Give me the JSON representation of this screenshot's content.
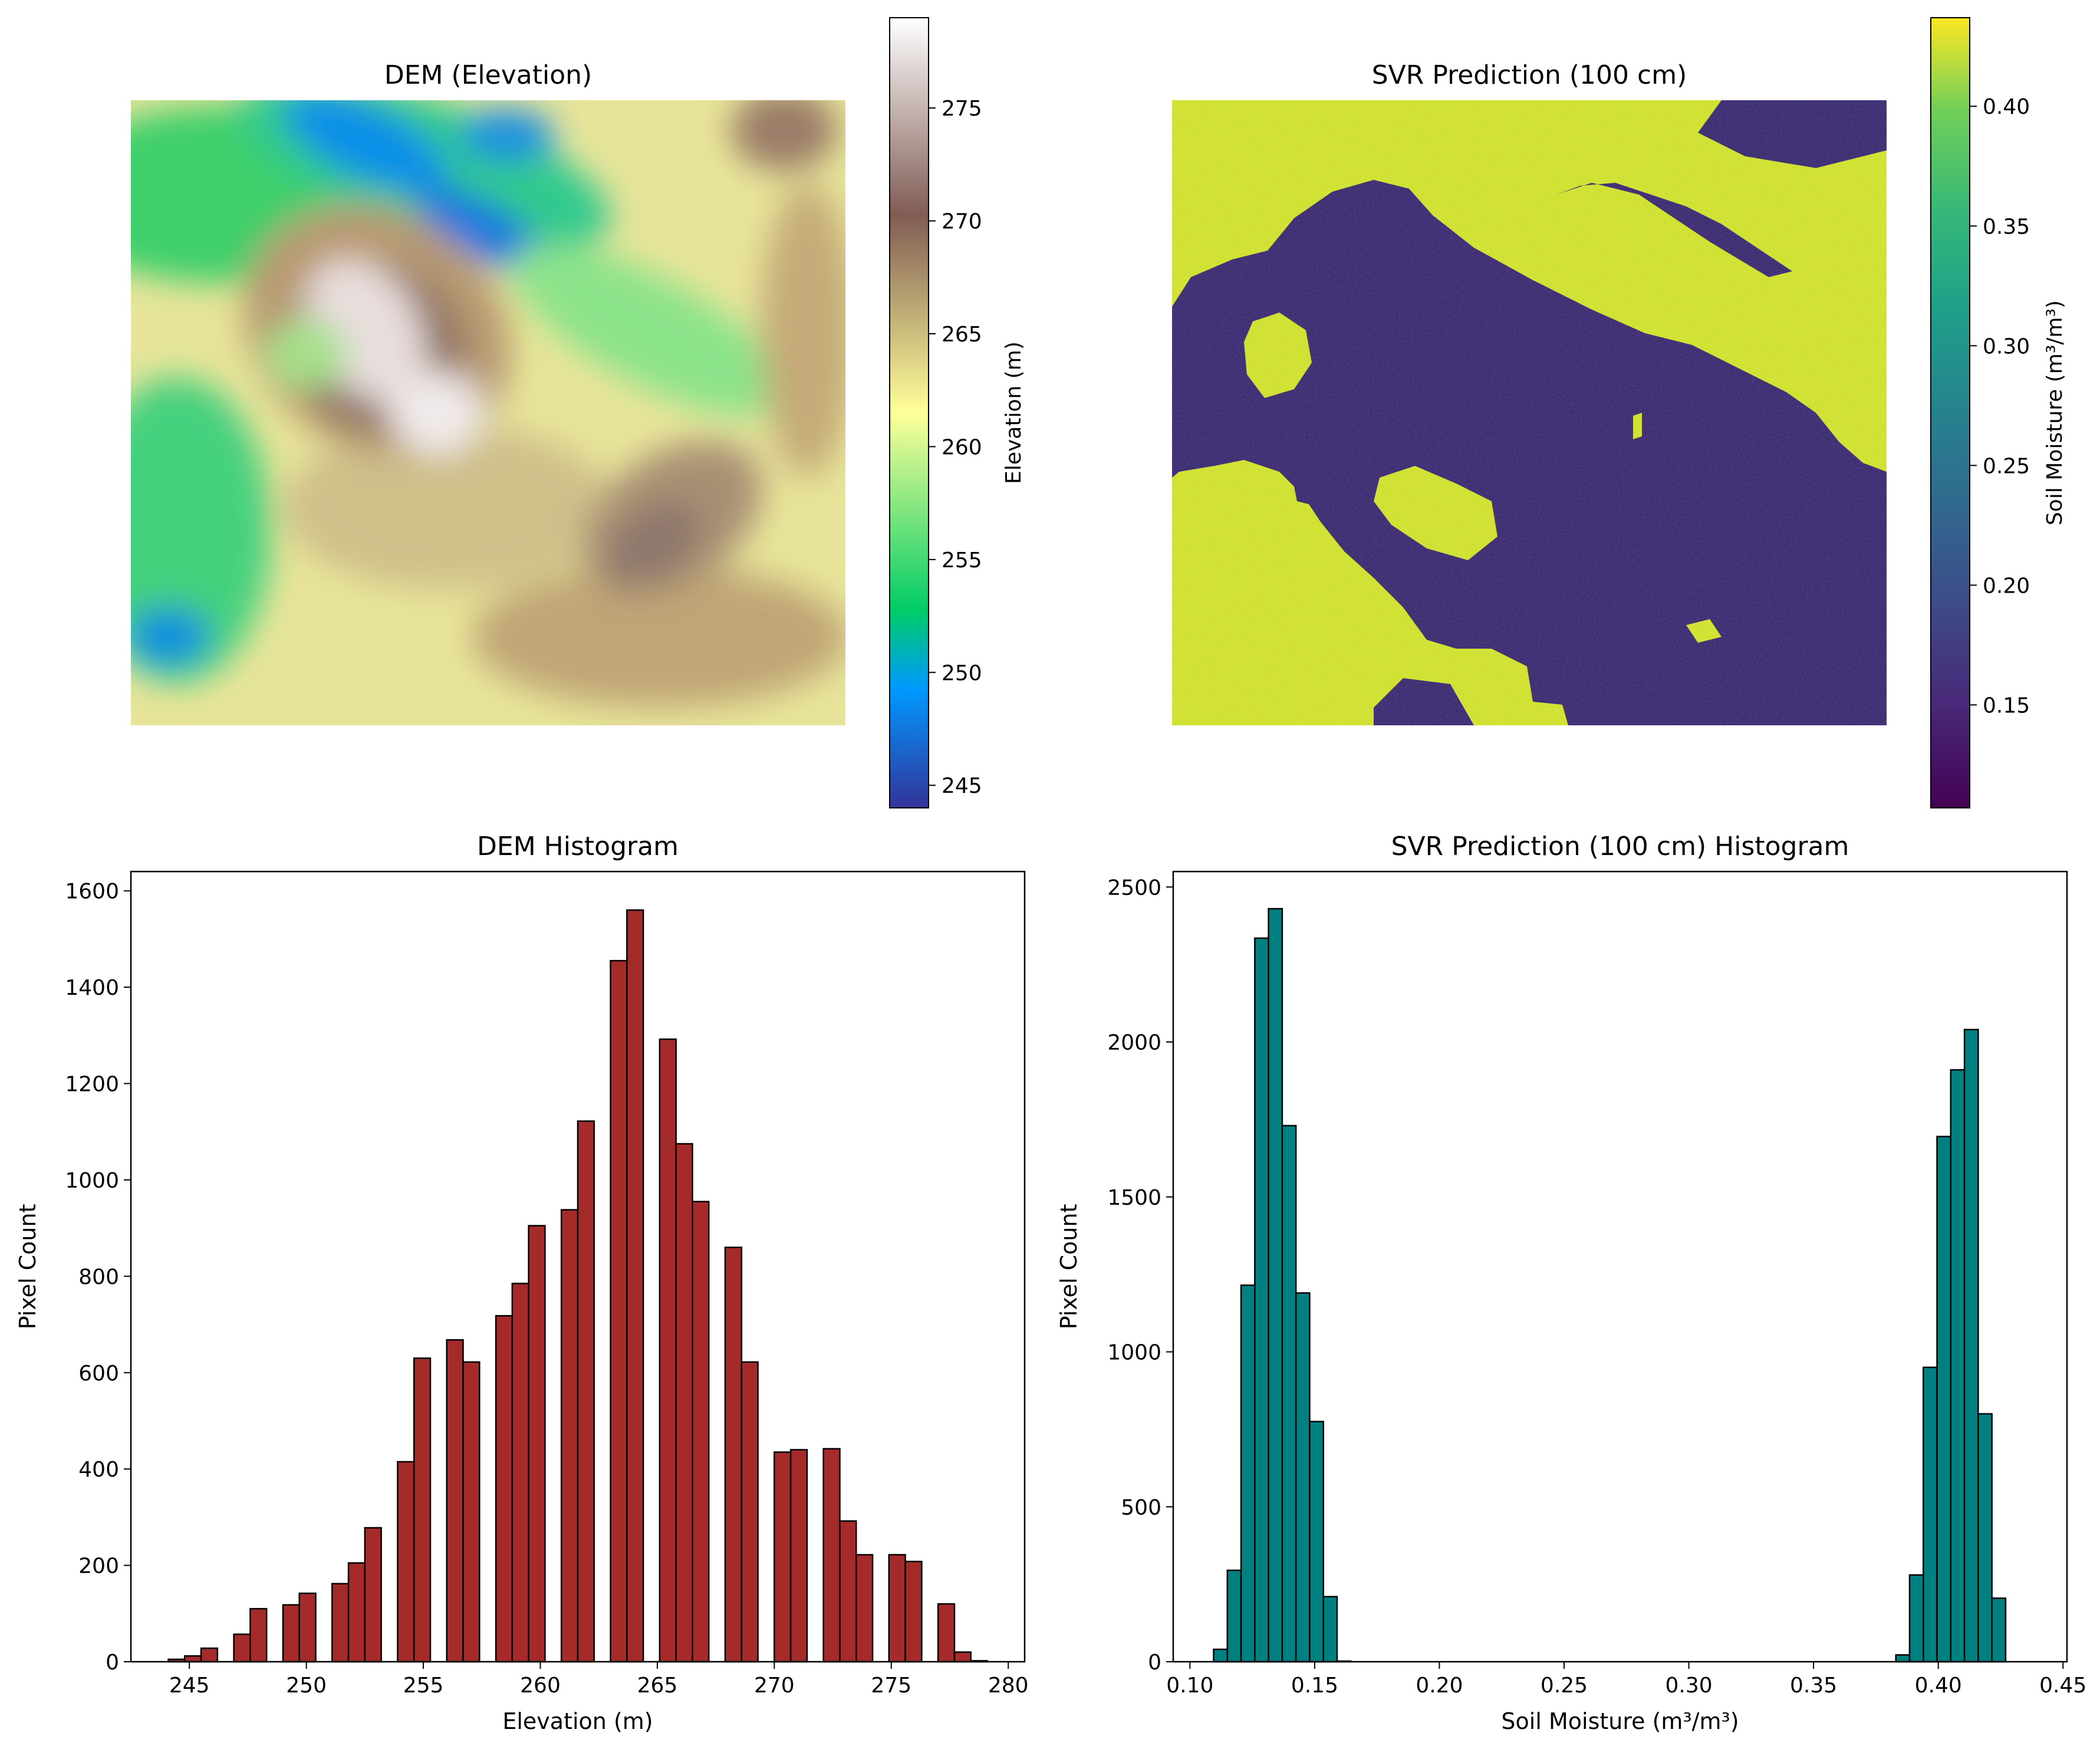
{
  "chart_data": [
    {
      "type": "heatmap",
      "title": "DEM (Elevation)",
      "colormap": "terrain",
      "colorbar": {
        "label": "Elevation (m)",
        "range": [
          244,
          279
        ],
        "ticks": [
          "245",
          "250",
          "255",
          "260",
          "265",
          "270",
          "275"
        ],
        "tick_values": [
          245,
          250,
          255,
          260,
          265,
          270,
          275
        ]
      },
      "axes_visible": false
    },
    {
      "type": "heatmap",
      "title": "SVR Prediction (100 cm)",
      "colormap": "viridis",
      "colorbar": {
        "label": "Soil Moisture (m³/m³)",
        "range": [
          0.107,
          0.437
        ],
        "ticks": [
          "0.15",
          "0.20",
          "0.25",
          "0.30",
          "0.35",
          "0.40"
        ],
        "tick_values": [
          0.15,
          0.2,
          0.25,
          0.3,
          0.35,
          0.4
        ]
      },
      "axes_visible": false
    },
    {
      "type": "bar",
      "title": "DEM Histogram",
      "xlabel": "Elevation (m)",
      "ylabel": "Pixel Count",
      "bar_color": "#a52a2a",
      "edge_color": "#000000",
      "xlim": [
        242.5,
        280.7
      ],
      "ylim": [
        0,
        1640
      ],
      "xticks": [
        "245",
        "250",
        "255",
        "260",
        "265",
        "270",
        "275",
        "280"
      ],
      "xtick_values": [
        245,
        250,
        255,
        260,
        265,
        270,
        275,
        280
      ],
      "yticks": [
        "0",
        "200",
        "400",
        "600",
        "800",
        "1000",
        "1200",
        "1400",
        "1600"
      ],
      "ytick_values": [
        0,
        200,
        400,
        600,
        800,
        1000,
        1200,
        1400,
        1600
      ],
      "bars": [
        {
          "x": 244.1,
          "w": 0.7,
          "v": 5
        },
        {
          "x": 244.8,
          "w": 0.7,
          "v": 12
        },
        {
          "x": 245.5,
          "w": 0.7,
          "v": 28
        },
        {
          "x": 246.9,
          "w": 0.7,
          "v": 57
        },
        {
          "x": 247.6,
          "w": 0.7,
          "v": 110
        },
        {
          "x": 249.0,
          "w": 0.7,
          "v": 118
        },
        {
          "x": 249.7,
          "w": 0.7,
          "v": 142
        },
        {
          "x": 251.1,
          "w": 0.7,
          "v": 162
        },
        {
          "x": 251.8,
          "w": 0.7,
          "v": 205
        },
        {
          "x": 252.5,
          "w": 0.7,
          "v": 278
        },
        {
          "x": 253.9,
          "w": 0.7,
          "v": 415
        },
        {
          "x": 254.6,
          "w": 0.7,
          "v": 630
        },
        {
          "x": 256.0,
          "w": 0.7,
          "v": 668
        },
        {
          "x": 256.7,
          "w": 0.7,
          "v": 622
        },
        {
          "x": 258.1,
          "w": 0.7,
          "v": 718
        },
        {
          "x": 258.8,
          "w": 0.7,
          "v": 785
        },
        {
          "x": 259.5,
          "w": 0.7,
          "v": 905
        },
        {
          "x": 260.9,
          "w": 0.7,
          "v": 938
        },
        {
          "x": 261.6,
          "w": 0.7,
          "v": 1122
        },
        {
          "x": 263.0,
          "w": 0.7,
          "v": 1455
        },
        {
          "x": 263.7,
          "w": 0.7,
          "v": 1560
        },
        {
          "x": 265.1,
          "w": 0.7,
          "v": 1292
        },
        {
          "x": 265.8,
          "w": 0.7,
          "v": 1075
        },
        {
          "x": 266.5,
          "w": 0.7,
          "v": 955
        },
        {
          "x": 267.9,
          "w": 0.7,
          "v": 860
        },
        {
          "x": 268.6,
          "w": 0.7,
          "v": 622
        },
        {
          "x": 270.0,
          "w": 0.7,
          "v": 435
        },
        {
          "x": 270.7,
          "w": 0.7,
          "v": 440
        },
        {
          "x": 272.1,
          "w": 0.7,
          "v": 442
        },
        {
          "x": 272.8,
          "w": 0.7,
          "v": 292
        },
        {
          "x": 273.5,
          "w": 0.7,
          "v": 222
        },
        {
          "x": 274.9,
          "w": 0.7,
          "v": 222
        },
        {
          "x": 275.6,
          "w": 0.7,
          "v": 208
        },
        {
          "x": 277.0,
          "w": 0.7,
          "v": 120
        },
        {
          "x": 277.7,
          "w": 0.7,
          "v": 20
        },
        {
          "x": 278.4,
          "w": 0.7,
          "v": 2
        }
      ]
    },
    {
      "type": "bar",
      "title": "SVR Prediction (100 cm) Histogram",
      "xlabel": "Soil Moisture (m³/m³)",
      "ylabel": "Pixel Count",
      "bar_color": "#008080",
      "edge_color": "#000000",
      "xlim": [
        0.0933,
        0.4516
      ],
      "ylim": [
        0,
        2550
      ],
      "xticks": [
        "0.10",
        "0.15",
        "0.20",
        "0.25",
        "0.30",
        "0.35",
        "0.40",
        "0.45"
      ],
      "xtick_values": [
        0.1,
        0.15,
        0.2,
        0.25,
        0.3,
        0.35,
        0.4,
        0.45
      ],
      "yticks": [
        "0",
        "500",
        "1000",
        "1500",
        "2000",
        "2500"
      ],
      "ytick_values": [
        0,
        500,
        1000,
        1500,
        2000,
        2500
      ],
      "bars": [
        {
          "x": 0.1095,
          "w": 0.0055,
          "v": 40
        },
        {
          "x": 0.115,
          "w": 0.0055,
          "v": 295
        },
        {
          "x": 0.1205,
          "w": 0.0055,
          "v": 1215
        },
        {
          "x": 0.126,
          "w": 0.0055,
          "v": 2335
        },
        {
          "x": 0.1315,
          "w": 0.0055,
          "v": 2430
        },
        {
          "x": 0.137,
          "w": 0.0055,
          "v": 1730
        },
        {
          "x": 0.1425,
          "w": 0.0055,
          "v": 1190
        },
        {
          "x": 0.148,
          "w": 0.0055,
          "v": 775
        },
        {
          "x": 0.1535,
          "w": 0.0055,
          "v": 210
        },
        {
          "x": 0.159,
          "w": 0.0055,
          "v": 2
        },
        {
          "x": 0.383,
          "w": 0.0055,
          "v": 22
        },
        {
          "x": 0.3885,
          "w": 0.0055,
          "v": 280
        },
        {
          "x": 0.394,
          "w": 0.0055,
          "v": 950
        },
        {
          "x": 0.3995,
          "w": 0.0055,
          "v": 1695
        },
        {
          "x": 0.405,
          "w": 0.0055,
          "v": 1910
        },
        {
          "x": 0.4105,
          "w": 0.0055,
          "v": 2040
        },
        {
          "x": 0.416,
          "w": 0.0055,
          "v": 800
        },
        {
          "x": 0.4215,
          "w": 0.0055,
          "v": 205
        }
      ]
    }
  ]
}
